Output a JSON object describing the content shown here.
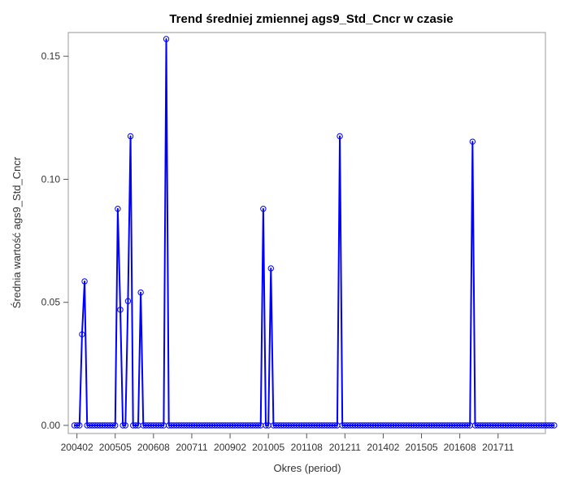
{
  "chart_data": {
    "type": "line",
    "title": "Trend średniej zmiennej ags9_Std_Cncr w czasie",
    "xlabel": "Okres (period)",
    "ylabel": "Średnia wartość ags9_Std_Cncr",
    "start_period": "200401",
    "ylim": [
      -0.003,
      0.16
    ],
    "y_ticks": [
      0.0,
      0.05,
      0.1,
      0.15
    ],
    "y_tick_labels": [
      "0.00",
      "0.05",
      "0.10",
      "0.15"
    ],
    "x_tick_labels": [
      "200402",
      "200505",
      "200608",
      "200711",
      "200902",
      "201005",
      "201108",
      "201211",
      "201402",
      "201505",
      "201608",
      "201711"
    ],
    "series_color": "#0000ff",
    "marker": "open-circle",
    "series": [
      {
        "values": [
          0,
          0,
          0,
          0.037,
          0.0585,
          0,
          0,
          0,
          0,
          0,
          0,
          0,
          0,
          0,
          0,
          0,
          0,
          0.088,
          0.047,
          0,
          0,
          0.0505,
          0.1175,
          0,
          0,
          0,
          0.054,
          0,
          0,
          0,
          0,
          0,
          0,
          0,
          0,
          0,
          0.157,
          0,
          0,
          0,
          0,
          0,
          0,
          0,
          0,
          0,
          0,
          0,
          0,
          0,
          0,
          0,
          0,
          0,
          0,
          0,
          0,
          0,
          0,
          0,
          0,
          0,
          0,
          0,
          0,
          0,
          0,
          0,
          0,
          0,
          0,
          0,
          0,
          0,
          0.088,
          0,
          0,
          0.0638,
          0,
          0,
          0,
          0,
          0,
          0,
          0,
          0,
          0,
          0,
          0,
          0,
          0,
          0,
          0,
          0,
          0,
          0,
          0,
          0,
          0,
          0,
          0,
          0,
          0,
          0,
          0.1175,
          0,
          0,
          0,
          0,
          0,
          0,
          0,
          0,
          0,
          0,
          0,
          0,
          0,
          0,
          0,
          0,
          0,
          0,
          0,
          0,
          0,
          0,
          0,
          0,
          0,
          0,
          0,
          0,
          0,
          0,
          0,
          0,
          0,
          0,
          0,
          0,
          0,
          0,
          0,
          0,
          0,
          0,
          0,
          0,
          0,
          0,
          0,
          0,
          0,
          0,
          0,
          0.1153,
          0,
          0,
          0,
          0,
          0,
          0,
          0,
          0,
          0,
          0,
          0,
          0,
          0,
          0,
          0,
          0,
          0,
          0,
          0,
          0,
          0,
          0,
          0,
          0,
          0,
          0,
          0,
          0,
          0,
          0,
          0,
          0
        ]
      }
    ]
  }
}
